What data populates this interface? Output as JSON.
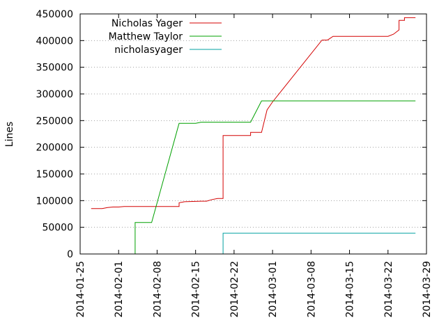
{
  "chart_data": {
    "type": "line",
    "title": "",
    "xlabel": "",
    "ylabel": "Lines",
    "x_axis": {
      "type": "date",
      "range": [
        "2014-01-25",
        "2014-03-29"
      ],
      "ticks": [
        "2014-01-25",
        "2014-02-01",
        "2014-02-08",
        "2014-02-15",
        "2014-02-22",
        "2014-03-01",
        "2014-03-08",
        "2014-03-15",
        "2014-03-22",
        "2014-03-29"
      ]
    },
    "y_axis": {
      "range": [
        0,
        450000
      ],
      "ticks": [
        0,
        50000,
        100000,
        150000,
        200000,
        250000,
        300000,
        350000,
        400000,
        450000
      ]
    },
    "grid": true,
    "grid_style": "dotted horizontal",
    "legend_position": "top-left",
    "series": [
      {
        "name": "Nicholas Yager",
        "color": "#d40000",
        "points": [
          [
            "2014-01-27",
            85000
          ],
          [
            "2014-01-29",
            85000
          ],
          [
            "2014-01-30",
            87000
          ],
          [
            "2014-01-31",
            88000
          ],
          [
            "2014-02-01",
            88000
          ],
          [
            "2014-02-02",
            89000
          ],
          [
            "2014-02-06",
            89000
          ],
          [
            "2014-02-12",
            89000
          ],
          [
            "2014-02-12",
            96000
          ],
          [
            "2014-02-13",
            98000
          ],
          [
            "2014-02-16",
            99000
          ],
          [
            "2014-02-17",
            99000
          ],
          [
            "2014-02-18",
            102000
          ],
          [
            "2014-02-19",
            104000
          ],
          [
            "2014-02-20",
            104000
          ],
          [
            "2014-02-20",
            222000
          ],
          [
            "2014-02-25",
            222000
          ],
          [
            "2014-02-25",
            228000
          ],
          [
            "2014-02-27",
            228000
          ],
          [
            "2014-02-28",
            270000
          ],
          [
            "2014-03-01",
            285000
          ],
          [
            "2014-03-10",
            401000
          ],
          [
            "2014-03-11",
            401000
          ],
          [
            "2014-03-12",
            408000
          ],
          [
            "2014-03-22",
            408000
          ],
          [
            "2014-03-23",
            412000
          ],
          [
            "2014-03-24",
            420000
          ],
          [
            "2014-03-24",
            438000
          ],
          [
            "2014-03-25",
            438000
          ],
          [
            "2014-03-25",
            443000
          ],
          [
            "2014-03-27",
            443000
          ]
        ]
      },
      {
        "name": "Matthew Taylor",
        "color": "#00a000",
        "points": [
          [
            "2014-02-04",
            0
          ],
          [
            "2014-02-04",
            59000
          ],
          [
            "2014-02-07",
            59000
          ],
          [
            "2014-02-12",
            245000
          ],
          [
            "2014-02-15",
            245000
          ],
          [
            "2014-02-16",
            247000
          ],
          [
            "2014-02-25",
            247000
          ],
          [
            "2014-02-27",
            287000
          ],
          [
            "2014-03-27",
            287000
          ]
        ]
      },
      {
        "name": "nicholasyager",
        "color": "#00a0a0",
        "points": [
          [
            "2014-02-20",
            0
          ],
          [
            "2014-02-20",
            39000
          ],
          [
            "2014-03-27",
            39000
          ]
        ]
      }
    ]
  }
}
